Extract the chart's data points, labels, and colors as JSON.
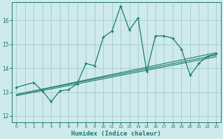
{
  "xlabel": "Humidex (Indice chaleur)",
  "bg_color": "#ceeaea",
  "grid_color": "#aacfcf",
  "line_color": "#1a7a6e",
  "xlim": [
    -0.5,
    23.5
  ],
  "ylim": [
    11.75,
    16.75
  ],
  "xticks": [
    0,
    1,
    2,
    3,
    4,
    5,
    6,
    7,
    8,
    9,
    10,
    11,
    12,
    13,
    14,
    15,
    16,
    17,
    18,
    19,
    20,
    21,
    22,
    23
  ],
  "yticks": [
    12,
    13,
    14,
    15,
    16
  ],
  "main_line": {
    "x": [
      0,
      2,
      3,
      4,
      5,
      6,
      7,
      8,
      9,
      10,
      11,
      12,
      13,
      14,
      15,
      16,
      17,
      18,
      19,
      20,
      21,
      22,
      23
    ],
    "y": [
      13.2,
      13.4,
      13.05,
      12.6,
      13.05,
      13.1,
      13.35,
      14.2,
      14.1,
      15.3,
      15.55,
      16.6,
      15.6,
      16.1,
      13.85,
      15.35,
      15.35,
      15.25,
      14.8,
      13.7,
      14.2,
      14.5,
      14.6
    ]
  },
  "trend_lines": [
    {
      "x": [
        0,
        23
      ],
      "y": [
        12.9,
        14.65
      ]
    },
    {
      "x": [
        0,
        23
      ],
      "y": [
        12.9,
        14.55
      ]
    },
    {
      "x": [
        0,
        23
      ],
      "y": [
        12.85,
        14.48
      ]
    }
  ]
}
